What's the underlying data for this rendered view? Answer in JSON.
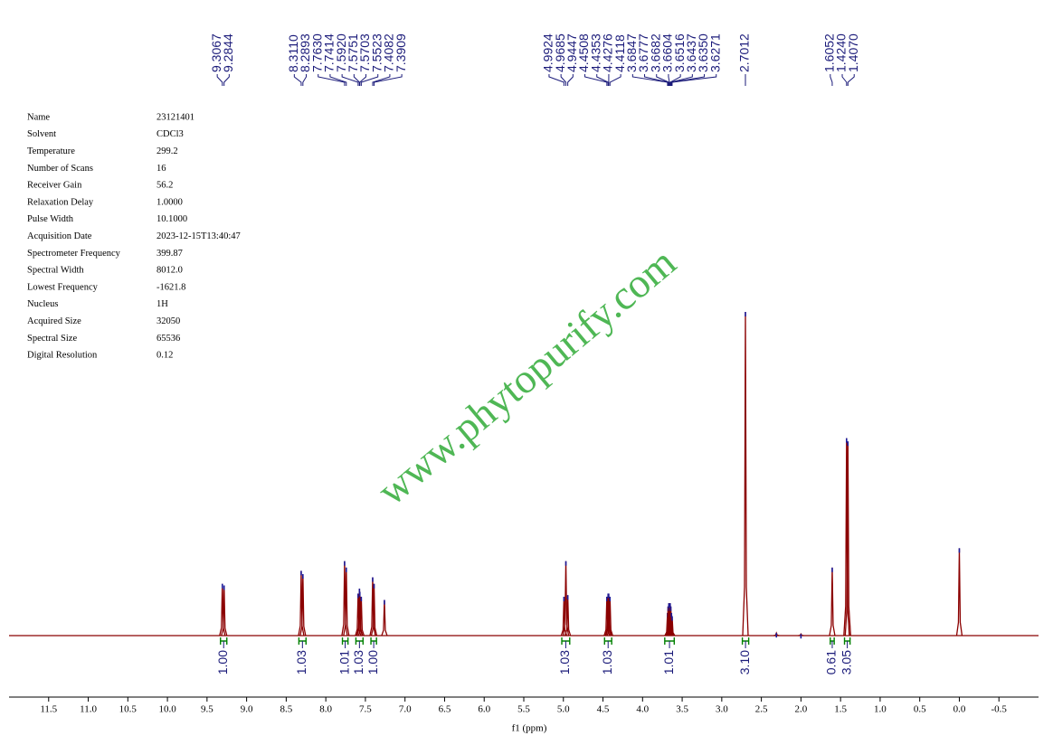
{
  "chart_data": {
    "type": "nmr",
    "x_label": "f1 (ppm)",
    "watermark": "www.phytopurify.com",
    "xlim": [
      12.0,
      -1.0
    ],
    "xticks": [
      11.5,
      {
        "value": 11,
        "label": "11.0"
      },
      10.5,
      {
        "value": 10,
        "label": "10.0"
      },
      9.5,
      {
        "value": 9,
        "label": "9.0"
      },
      8.5,
      {
        "value": 8,
        "label": "8.0"
      },
      7.5,
      {
        "value": 7,
        "label": "7.0"
      },
      6.5,
      {
        "value": 6,
        "label": "6.0"
      },
      5.5,
      {
        "value": 5,
        "label": "5.0"
      },
      4.5,
      {
        "value": 4,
        "label": "4.0"
      },
      3.5,
      {
        "value": 3,
        "label": "3.0"
      },
      2.5,
      {
        "value": 2,
        "label": "2.0"
      },
      1.5,
      {
        "value": 1,
        "label": "1.0"
      },
      0.5,
      {
        "value": 0,
        "label": "0.0"
      },
      -0.5
    ],
    "color": "#8b0000",
    "x": [
      9.3067,
      9.2844,
      8.311,
      8.2893,
      7.763,
      7.7414,
      7.592,
      7.5751,
      7.5703,
      7.5523,
      7.4082,
      7.3909,
      7.26,
      4.9924,
      4.9685,
      4.9447,
      4.4508,
      4.4353,
      4.4276,
      4.4118,
      3.6847,
      3.6777,
      3.6682,
      3.6604,
      3.6516,
      3.6437,
      3.635,
      3.6271,
      2.7012,
      2.31,
      2.0,
      1.6052,
      1.424,
      1.407,
      0.0
    ],
    "values": [
      16,
      15.5,
      20,
      19,
      23,
      21,
      13,
      14.5,
      13.5,
      12,
      18,
      16,
      11,
      12,
      23,
      12.5,
      12,
      13,
      13,
      12,
      7,
      9,
      10,
      9,
      10,
      9,
      7,
      6,
      100,
      0.8,
      0.5,
      21,
      61,
      60,
      27
    ],
    "peak_labels": [
      {
        "value": 9.3067,
        "label": "9.3067"
      },
      {
        "value": 9.2844,
        "label": "9.2844"
      },
      {
        "value": 8.311,
        "label": "8.3110"
      },
      {
        "value": 8.2893,
        "label": "8.2893"
      },
      {
        "value": 7.763,
        "label": "7.7630"
      },
      {
        "value": 7.7414,
        "label": "7.7414"
      },
      {
        "value": 7.592,
        "label": "7.5920"
      },
      {
        "value": 7.5751,
        "label": "7.5751"
      },
      {
        "value": 7.5703,
        "label": "7.5703"
      },
      {
        "value": 7.5523,
        "label": "7.5523"
      },
      {
        "value": 7.4082,
        "label": "7.4082"
      },
      {
        "value": 7.3909,
        "label": "7.3909"
      },
      {
        "value": 4.9924,
        "label": "4.9924"
      },
      {
        "value": 4.9685,
        "label": "4.9685"
      },
      {
        "value": 4.9447,
        "label": "4.9447"
      },
      {
        "value": 4.4508,
        "label": "4.4508"
      },
      {
        "value": 4.4353,
        "label": "4.4353"
      },
      {
        "value": 4.4276,
        "label": "4.4276"
      },
      {
        "value": 4.4118,
        "label": "4.4118"
      },
      {
        "value": 3.6847,
        "label": "3.6847"
      },
      {
        "value": 3.6777,
        "label": "3.6777"
      },
      {
        "value": 3.6682,
        "label": "3.6682"
      },
      {
        "value": 3.6604,
        "label": "3.6604"
      },
      {
        "value": 3.6516,
        "label": "3.6516"
      },
      {
        "value": 3.6437,
        "label": "3.6437"
      },
      {
        "value": 3.635,
        "label": "3.6350"
      },
      {
        "value": 3.6271,
        "label": "3.6271"
      },
      {
        "value": 2.7012,
        "label": "2.7012"
      },
      {
        "value": 1.6052,
        "label": "1.6052"
      },
      {
        "value": 1.424,
        "label": "1.4240"
      },
      {
        "value": 1.407,
        "label": "1.4070"
      }
    ],
    "integrals": {
      "from": [
        9.33,
        8.34,
        7.79,
        7.62,
        7.43,
        5.02,
        4.48,
        3.72,
        2.74,
        1.63,
        1.45
      ],
      "to": [
        9.25,
        8.25,
        7.72,
        7.53,
        7.36,
        4.92,
        4.39,
        3.6,
        2.66,
        1.58,
        1.38
      ],
      "values": [
        1,
        1.03,
        1.01,
        1.03,
        1,
        1.03,
        1.03,
        1.01,
        3.1,
        0.61,
        3.05
      ],
      "value_labels": [
        "1.00",
        "1.03",
        "1.01",
        "1.03",
        "1.00",
        "1.03",
        "1.03",
        "1.01",
        "3.10",
        "0.61",
        "3.05"
      ],
      "color": "#008000"
    },
    "parameters": [
      {
        "name": "Name",
        "value": "23121401"
      },
      {
        "name": "Solvent",
        "value": "CDCl3"
      },
      {
        "name": "Temperature",
        "value": "299.2"
      },
      {
        "name": "Number of Scans",
        "value": "16"
      },
      {
        "name": "Receiver Gain",
        "value": "56.2"
      },
      {
        "name": "Relaxation Delay",
        "value": "1.0000"
      },
      {
        "name": "Pulse Width",
        "value": "10.1000"
      },
      {
        "name": "Acquisition Date",
        "value": "2023-12-15T13:40:47"
      },
      {
        "name": "Spectrometer Frequency",
        "value": "399.87"
      },
      {
        "name": "Spectral Width",
        "value": "8012.0"
      },
      {
        "name": "Lowest Frequency",
        "value": "-1621.8"
      },
      {
        "name": "Nucleus",
        "value": "1H"
      },
      {
        "name": "Acquired Size",
        "value": "32050"
      },
      {
        "name": "Spectral Size",
        "value": "65536"
      },
      {
        "name": "Digital Resolution",
        "value": "0.12"
      }
    ]
  }
}
